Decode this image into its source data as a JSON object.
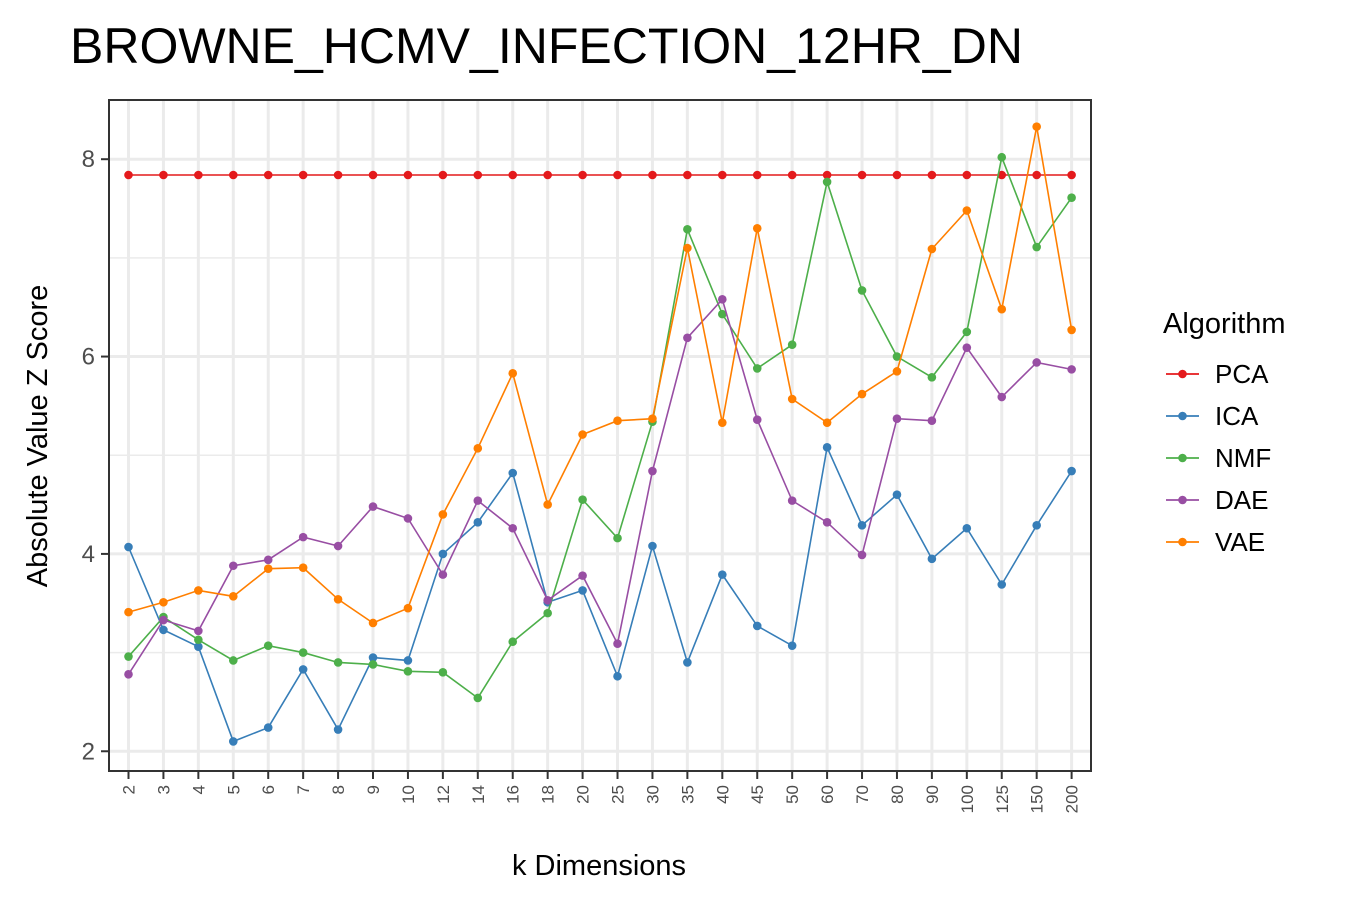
{
  "chart_data": {
    "type": "line",
    "title": "BROWNE_HCMV_INFECTION_12HR_DN",
    "xlabel": "k Dimensions",
    "ylabel": "Absolute Value Z Score",
    "categories": [
      "2",
      "3",
      "4",
      "5",
      "6",
      "7",
      "8",
      "9",
      "10",
      "12",
      "14",
      "16",
      "18",
      "20",
      "25",
      "30",
      "35",
      "40",
      "45",
      "50",
      "60",
      "70",
      "80",
      "90",
      "100",
      "125",
      "150",
      "200"
    ],
    "ylim": [
      1.8,
      8.6
    ],
    "y_ticks": [
      2,
      4,
      6,
      8
    ],
    "y_tick_labels": [
      "2",
      "4",
      "6",
      "8"
    ],
    "grid": true,
    "legend": {
      "title": "Algorithm",
      "position": "right"
    },
    "series": [
      {
        "name": "PCA",
        "color": "#e41a1c",
        "values": [
          7.84,
          7.84,
          7.84,
          7.84,
          7.84,
          7.84,
          7.84,
          7.84,
          7.84,
          7.84,
          7.84,
          7.84,
          7.84,
          7.84,
          7.84,
          7.84,
          7.84,
          7.84,
          7.84,
          7.84,
          7.84,
          7.84,
          7.84,
          7.84,
          7.84,
          7.84,
          7.84,
          7.84
        ]
      },
      {
        "name": "ICA",
        "color": "#377eb8",
        "values": [
          4.07,
          3.23,
          3.06,
          2.1,
          2.24,
          2.83,
          2.22,
          2.95,
          2.92,
          4.0,
          4.32,
          4.82,
          3.51,
          3.63,
          2.76,
          4.08,
          2.9,
          3.79,
          3.27,
          3.07,
          5.08,
          4.29,
          4.6,
          3.95,
          4.26,
          3.69,
          4.29,
          4.84
        ]
      },
      {
        "name": "NMF",
        "color": "#4daf4a",
        "values": [
          2.96,
          3.36,
          3.13,
          2.92,
          3.07,
          3.0,
          2.9,
          2.88,
          2.81,
          2.8,
          2.54,
          3.11,
          3.4,
          4.55,
          4.16,
          5.34,
          7.29,
          6.43,
          5.88,
          6.12,
          7.77,
          6.67,
          6.0,
          5.79,
          6.25,
          8.02,
          7.11,
          7.61
        ]
      },
      {
        "name": "DAE",
        "color": "#984ea3",
        "values": [
          2.78,
          3.33,
          3.22,
          3.88,
          3.94,
          4.17,
          4.08,
          4.48,
          4.36,
          3.79,
          4.54,
          4.26,
          3.53,
          3.78,
          3.09,
          4.84,
          6.19,
          6.58,
          5.36,
          4.54,
          4.32,
          3.99,
          5.37,
          5.35,
          6.09,
          5.59,
          5.94,
          5.87
        ]
      },
      {
        "name": "VAE",
        "color": "#ff7f00",
        "values": [
          3.41,
          3.51,
          3.63,
          3.57,
          3.85,
          3.86,
          3.54,
          3.3,
          3.45,
          4.4,
          5.07,
          5.83,
          4.5,
          5.21,
          5.35,
          5.37,
          7.1,
          5.33,
          7.3,
          5.57,
          5.33,
          5.62,
          5.85,
          7.09,
          7.48,
          6.48,
          8.33,
          6.27
        ]
      }
    ]
  }
}
